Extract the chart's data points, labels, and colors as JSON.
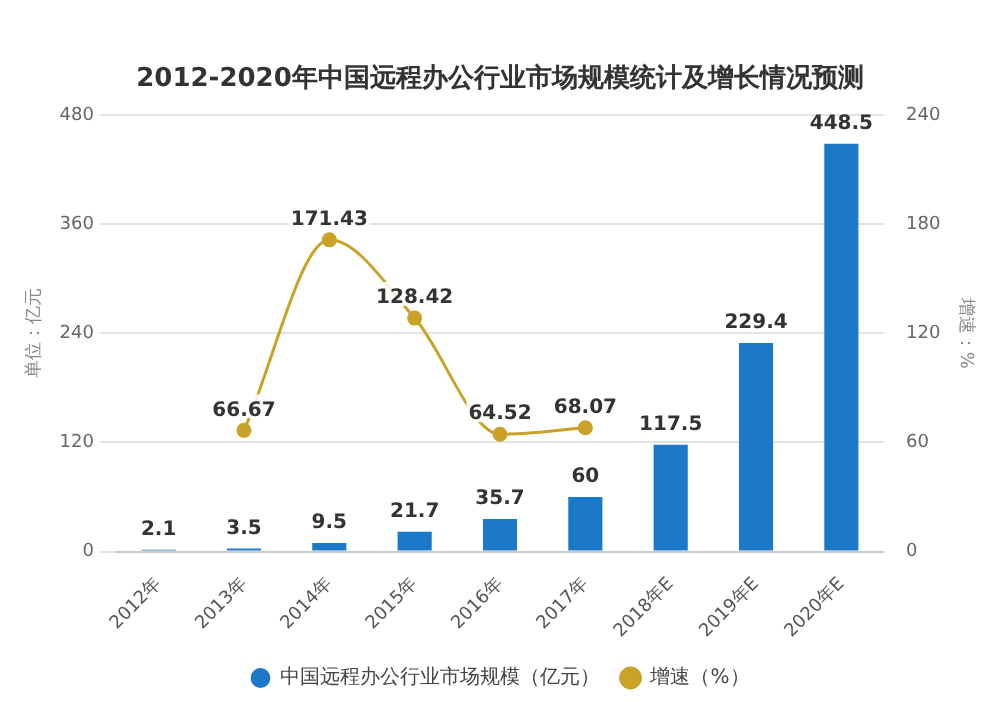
{
  "chart_data": {
    "type": "bar",
    "title": "2012-2020年中国远程办公行业市场规模统计及增长情况预测",
    "ylabel": "单位：亿元",
    "y2label": "增速：%",
    "categories": [
      "2012年",
      "2013年",
      "2014年",
      "2015年",
      "2016年",
      "2017年",
      "2018年E",
      "2019年E",
      "2020年E"
    ],
    "series": [
      {
        "name": "中国远程办公行业市场规模（亿元）",
        "color": "#1c78c8",
        "values": [
          2.1,
          3.5,
          9.5,
          21.7,
          35.7,
          60,
          117.5,
          229.4,
          448.5
        ]
      },
      {
        "name": "增速（%）",
        "type": "line",
        "axis": "y2",
        "color": "#c9a227",
        "marker": "circle",
        "values": [
          null,
          66.67,
          171.43,
          128.42,
          64.52,
          68.07,
          null,
          null,
          null
        ]
      }
    ],
    "ylim": [
      0,
      480
    ],
    "yticks": [
      0,
      120,
      240,
      360,
      480
    ],
    "y2lim": [
      0,
      240
    ],
    "y2ticks": [
      0,
      60,
      120,
      180,
      240
    ],
    "grid": "y",
    "legend": "bottom",
    "data_labels": true
  }
}
